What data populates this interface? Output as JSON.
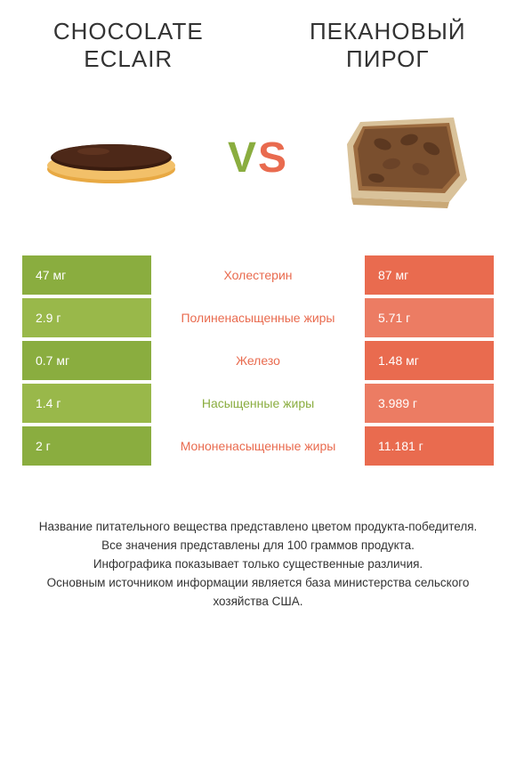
{
  "headings": {
    "left": "CHOCOLATE ECLAIR",
    "right": "ПЕКАНОВЫЙ ПИРОГ"
  },
  "vs": {
    "v": "V",
    "s": "S"
  },
  "colors": {
    "left_bg": "#8aad3f",
    "left_bg_alt": "#99b84a",
    "right_bg": "#e96b4f",
    "right_bg_alt": "#ec7c63",
    "label_green": "#8aad3f",
    "label_orange": "#e96b4f"
  },
  "rows": [
    {
      "left_value": "47 мг",
      "label": "Холестерин",
      "right_value": "87 мг",
      "label_color": "#e96b4f",
      "left_shade": "#8aad3f",
      "right_shade": "#e96b4f"
    },
    {
      "left_value": "2.9 г",
      "label": "Полиненасыщенные жиры",
      "right_value": "5.71 г",
      "label_color": "#e96b4f",
      "left_shade": "#99b84a",
      "right_shade": "#ec7c63"
    },
    {
      "left_value": "0.7 мг",
      "label": "Железо",
      "right_value": "1.48 мг",
      "label_color": "#e96b4f",
      "left_shade": "#8aad3f",
      "right_shade": "#e96b4f"
    },
    {
      "left_value": "1.4 г",
      "label": "Насыщенные жиры",
      "right_value": "3.989 г",
      "label_color": "#8aad3f",
      "left_shade": "#99b84a",
      "right_shade": "#ec7c63"
    },
    {
      "left_value": "2 г",
      "label": "Мононенасыщенные жиры",
      "right_value": "11.181 г",
      "label_color": "#e96b4f",
      "left_shade": "#8aad3f",
      "right_shade": "#e96b4f"
    }
  ],
  "footer": "Название питательного вещества представлено цветом продукта-победителя.\nВсе значения представлены для 100 граммов продукта.\nИнфографика показывает только существенные различия.\nОсновным источником информации является база министерства сельского хозяйства США."
}
